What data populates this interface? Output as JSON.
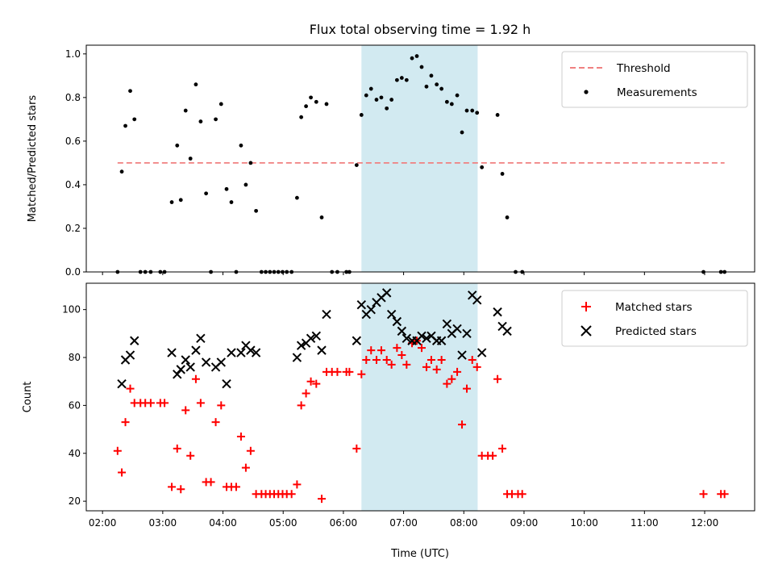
{
  "chart_data": {
    "title": "Flux total observing time = 1.92 h",
    "xlabel": "Time (UTC)",
    "x_units": "hours UTC",
    "xlim": [
      1.73,
      12.83
    ],
    "xticks": [
      2,
      3,
      4,
      5,
      6,
      7,
      8,
      9,
      10,
      11,
      12
    ],
    "xtick_labels": [
      "02:00",
      "03:00",
      "04:00",
      "05:00",
      "06:00",
      "07:00",
      "08:00",
      "09:00",
      "10:00",
      "11:00",
      "12:00"
    ],
    "highlight_span": [
      6.3,
      8.23
    ],
    "highlight_color": "#add8e6",
    "panels": [
      {
        "type": "scatter",
        "ylabel": "Matched/Predicted stars",
        "ylim": [
          0,
          1.04
        ],
        "yticks": [
          0.0,
          0.2,
          0.4,
          0.6,
          0.8,
          1.0
        ],
        "ytick_labels": [
          "0.0",
          "0.2",
          "0.4",
          "0.6",
          "0.8",
          "1.0"
        ],
        "legend_position": "top-right",
        "threshold": {
          "name": "Threshold",
          "y": 0.5,
          "x_range": [
            2.25,
            12.33
          ],
          "color": "#f08080",
          "style": "dashed"
        },
        "series": [
          {
            "name": "Measurements",
            "marker": "dot",
            "color": "#000000",
            "points": [
              [
                2.25,
                0
              ],
              [
                2.32,
                0.46
              ],
              [
                2.38,
                0.67
              ],
              [
                2.46,
                0.83
              ],
              [
                2.53,
                0.7
              ],
              [
                2.63,
                0
              ],
              [
                2.71,
                0
              ],
              [
                2.8,
                0
              ],
              [
                2.96,
                0
              ],
              [
                3.03,
                0
              ],
              [
                3.15,
                0.32
              ],
              [
                3.24,
                0.58
              ],
              [
                3.3,
                0.33
              ],
              [
                3.38,
                0.74
              ],
              [
                3.46,
                0.52
              ],
              [
                3.55,
                0.86
              ],
              [
                3.63,
                0.69
              ],
              [
                3.72,
                0.36
              ],
              [
                3.8,
                0
              ],
              [
                3.88,
                0.7
              ],
              [
                3.97,
                0.77
              ],
              [
                4.06,
                0.38
              ],
              [
                4.14,
                0.32
              ],
              [
                4.22,
                0
              ],
              [
                4.3,
                0.58
              ],
              [
                4.38,
                0.4
              ],
              [
                4.46,
                0.5
              ],
              [
                4.55,
                0.28
              ],
              [
                4.64,
                0
              ],
              [
                4.71,
                0
              ],
              [
                4.78,
                0
              ],
              [
                4.85,
                0
              ],
              [
                4.92,
                0
              ],
              [
                4.99,
                0
              ],
              [
                5.06,
                0
              ],
              [
                5.14,
                0
              ],
              [
                5.23,
                0.34
              ],
              [
                5.3,
                0.71
              ],
              [
                5.38,
                0.76
              ],
              [
                5.46,
                0.8
              ],
              [
                5.55,
                0.78
              ],
              [
                5.64,
                0.25
              ],
              [
                5.72,
                0.77
              ],
              [
                5.81,
                0
              ],
              [
                5.9,
                0
              ],
              [
                6.05,
                0
              ],
              [
                6.1,
                0
              ],
              [
                6.22,
                0.49
              ],
              [
                6.3,
                0.72
              ],
              [
                6.38,
                0.81
              ],
              [
                6.46,
                0.84
              ],
              [
                6.55,
                0.79
              ],
              [
                6.63,
                0.8
              ],
              [
                6.72,
                0.75
              ],
              [
                6.8,
                0.79
              ],
              [
                6.89,
                0.88
              ],
              [
                6.97,
                0.89
              ],
              [
                7.05,
                0.88
              ],
              [
                7.14,
                0.98
              ],
              [
                7.22,
                0.99
              ],
              [
                7.3,
                0.94
              ],
              [
                7.38,
                0.85
              ],
              [
                7.46,
                0.9
              ],
              [
                7.55,
                0.86
              ],
              [
                7.63,
                0.84
              ],
              [
                7.72,
                0.78
              ],
              [
                7.8,
                0.77
              ],
              [
                7.89,
                0.81
              ],
              [
                7.97,
                0.64
              ],
              [
                8.05,
                0.74
              ],
              [
                8.14,
                0.74
              ],
              [
                8.22,
                0.73
              ],
              [
                8.3,
                0.48
              ],
              [
                8.56,
                0.72
              ],
              [
                8.64,
                0.45
              ],
              [
                8.72,
                0.25
              ],
              [
                8.86,
                0
              ],
              [
                8.97,
                0
              ],
              [
                11.98,
                0
              ],
              [
                12.27,
                0
              ],
              [
                12.33,
                0
              ]
            ]
          }
        ]
      },
      {
        "type": "scatter",
        "ylabel": "Count",
        "ylim": [
          16,
          111
        ],
        "yticks": [
          20,
          40,
          60,
          80,
          100
        ],
        "ytick_labels": [
          "20",
          "40",
          "60",
          "80",
          "100"
        ],
        "legend_position": "top-right",
        "series": [
          {
            "name": "Matched stars",
            "marker": "plus",
            "color": "#ff0000",
            "points": [
              [
                2.25,
                41
              ],
              [
                2.32,
                32
              ],
              [
                2.38,
                53
              ],
              [
                2.46,
                67
              ],
              [
                2.53,
                61
              ],
              [
                2.63,
                61
              ],
              [
                2.71,
                61
              ],
              [
                2.8,
                61
              ],
              [
                2.96,
                61
              ],
              [
                3.03,
                61
              ],
              [
                3.15,
                26
              ],
              [
                3.24,
                42
              ],
              [
                3.3,
                25
              ],
              [
                3.38,
                58
              ],
              [
                3.46,
                39
              ],
              [
                3.55,
                71
              ],
              [
                3.63,
                61
              ],
              [
                3.72,
                28
              ],
              [
                3.8,
                28
              ],
              [
                3.88,
                53
              ],
              [
                3.97,
                60
              ],
              [
                4.06,
                26
              ],
              [
                4.14,
                26
              ],
              [
                4.22,
                26
              ],
              [
                4.3,
                47
              ],
              [
                4.38,
                34
              ],
              [
                4.46,
                41
              ],
              [
                4.55,
                23
              ],
              [
                4.64,
                23
              ],
              [
                4.71,
                23
              ],
              [
                4.78,
                23
              ],
              [
                4.85,
                23
              ],
              [
                4.92,
                23
              ],
              [
                4.99,
                23
              ],
              [
                5.06,
                23
              ],
              [
                5.14,
                23
              ],
              [
                5.23,
                27
              ],
              [
                5.3,
                60
              ],
              [
                5.38,
                65
              ],
              [
                5.46,
                70
              ],
              [
                5.55,
                69
              ],
              [
                5.64,
                21
              ],
              [
                5.72,
                74
              ],
              [
                5.81,
                74
              ],
              [
                5.9,
                74
              ],
              [
                6.05,
                74
              ],
              [
                6.1,
                74
              ],
              [
                6.22,
                42
              ],
              [
                6.3,
                73
              ],
              [
                6.38,
                79
              ],
              [
                6.46,
                83
              ],
              [
                6.55,
                79
              ],
              [
                6.63,
                83
              ],
              [
                6.72,
                79
              ],
              [
                6.8,
                77
              ],
              [
                6.89,
                84
              ],
              [
                6.97,
                81
              ],
              [
                7.05,
                77
              ],
              [
                7.14,
                86
              ],
              [
                7.22,
                87
              ],
              [
                7.3,
                84
              ],
              [
                7.38,
                76
              ],
              [
                7.46,
                79
              ],
              [
                7.55,
                75
              ],
              [
                7.63,
                79
              ],
              [
                7.72,
                69
              ],
              [
                7.8,
                71
              ],
              [
                7.89,
                74
              ],
              [
                7.97,
                52
              ],
              [
                8.05,
                67
              ],
              [
                8.14,
                79
              ],
              [
                8.22,
                76
              ],
              [
                8.3,
                39
              ],
              [
                8.4,
                39
              ],
              [
                8.48,
                39
              ],
              [
                8.56,
                71
              ],
              [
                8.64,
                42
              ],
              [
                8.72,
                23
              ],
              [
                8.8,
                23
              ],
              [
                8.9,
                23
              ],
              [
                8.97,
                23
              ],
              [
                11.98,
                23
              ],
              [
                12.27,
                23
              ],
              [
                12.33,
                23
              ]
            ]
          },
          {
            "name": "Predicted stars",
            "marker": "x",
            "color": "#000000",
            "points": [
              [
                2.32,
                69
              ],
              [
                2.38,
                79
              ],
              [
                2.46,
                81
              ],
              [
                2.53,
                87
              ],
              [
                3.15,
                82
              ],
              [
                3.24,
                73
              ],
              [
                3.3,
                75
              ],
              [
                3.38,
                79
              ],
              [
                3.46,
                76
              ],
              [
                3.55,
                83
              ],
              [
                3.63,
                88
              ],
              [
                3.72,
                78
              ],
              [
                3.88,
                76
              ],
              [
                3.97,
                78
              ],
              [
                4.06,
                69
              ],
              [
                4.14,
                82
              ],
              [
                4.3,
                82
              ],
              [
                4.38,
                85
              ],
              [
                4.46,
                83
              ],
              [
                4.55,
                82
              ],
              [
                5.23,
                80
              ],
              [
                5.3,
                85
              ],
              [
                5.38,
                86
              ],
              [
                5.46,
                88
              ],
              [
                5.55,
                89
              ],
              [
                5.64,
                83
              ],
              [
                5.72,
                98
              ],
              [
                6.22,
                87
              ],
              [
                6.3,
                102
              ],
              [
                6.38,
                98
              ],
              [
                6.46,
                100
              ],
              [
                6.55,
                103
              ],
              [
                6.63,
                105
              ],
              [
                6.72,
                107
              ],
              [
                6.8,
                98
              ],
              [
                6.89,
                95
              ],
              [
                6.97,
                91
              ],
              [
                7.05,
                88
              ],
              [
                7.14,
                87
              ],
              [
                7.22,
                87
              ],
              [
                7.3,
                89
              ],
              [
                7.38,
                88
              ],
              [
                7.46,
                89
              ],
              [
                7.55,
                87
              ],
              [
                7.63,
                87
              ],
              [
                7.72,
                94
              ],
              [
                7.8,
                90
              ],
              [
                7.89,
                92
              ],
              [
                7.97,
                81
              ],
              [
                8.05,
                90
              ],
              [
                8.14,
                106
              ],
              [
                8.22,
                104
              ],
              [
                8.3,
                82
              ],
              [
                8.56,
                99
              ],
              [
                8.64,
                93
              ],
              [
                8.72,
                91
              ]
            ]
          }
        ]
      }
    ]
  }
}
